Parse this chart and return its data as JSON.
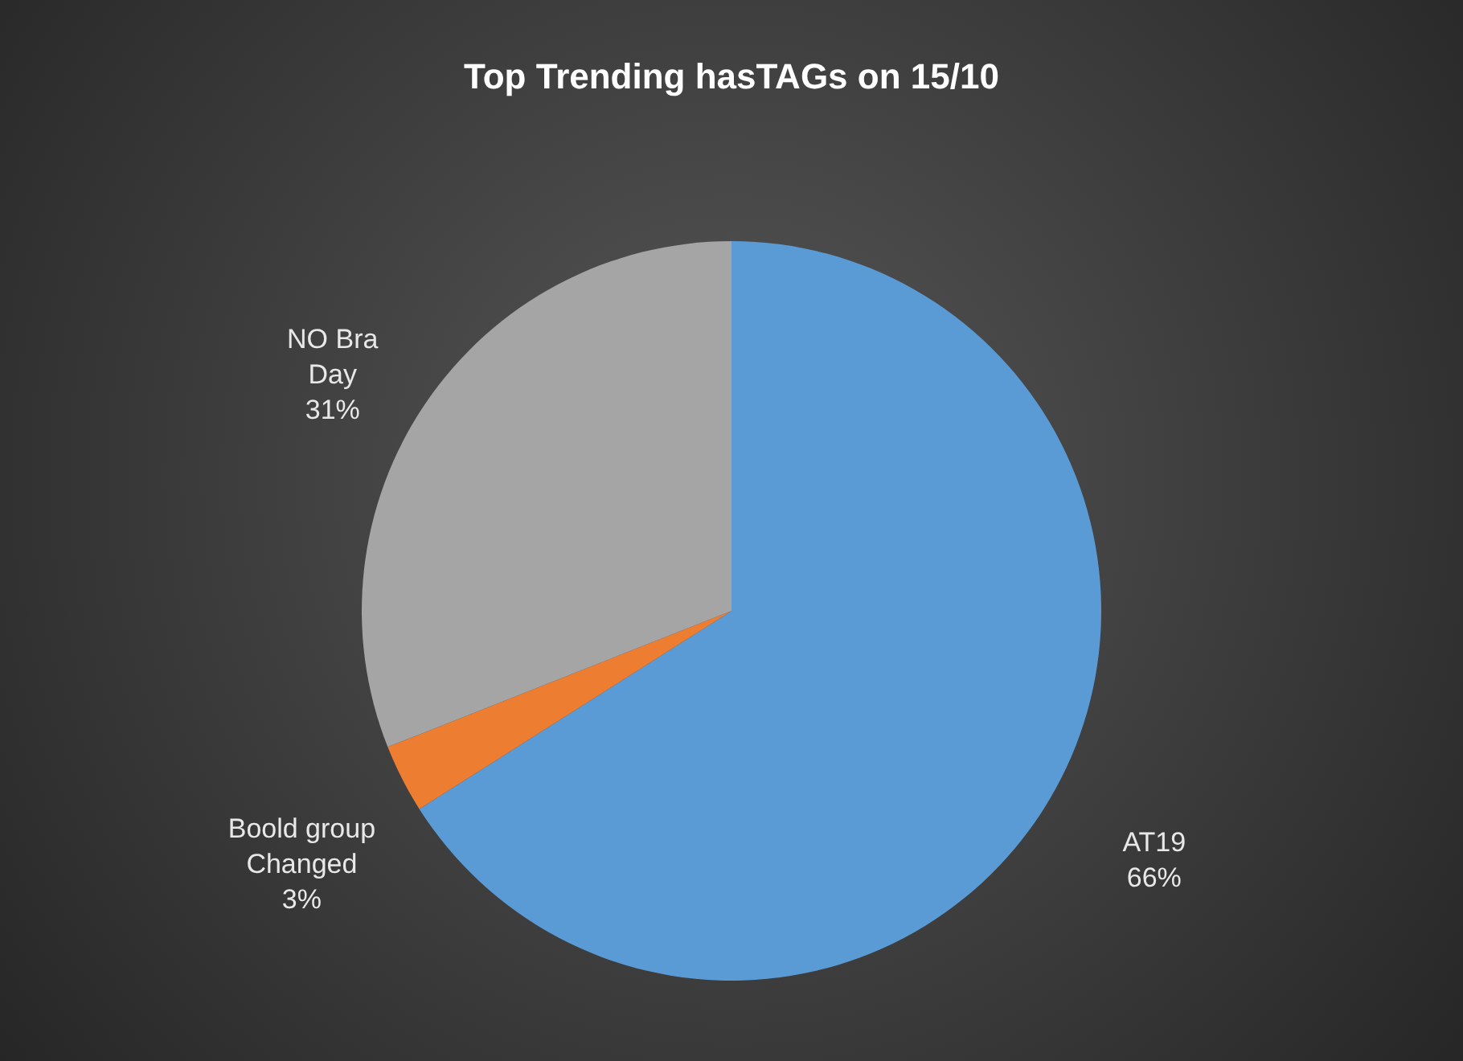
{
  "chart_data": {
    "type": "pie",
    "title": "Top Trending hasTAGs on 15/10",
    "categories": [
      "AT19",
      "Boold group Changed",
      "NO Bra Day"
    ],
    "values": [
      66,
      3,
      31
    ],
    "colors": [
      "#5b9bd5",
      "#ed7d31",
      "#a5a5a5"
    ],
    "value_labels": [
      "66%",
      "3%",
      "31%"
    ],
    "legend": false
  }
}
